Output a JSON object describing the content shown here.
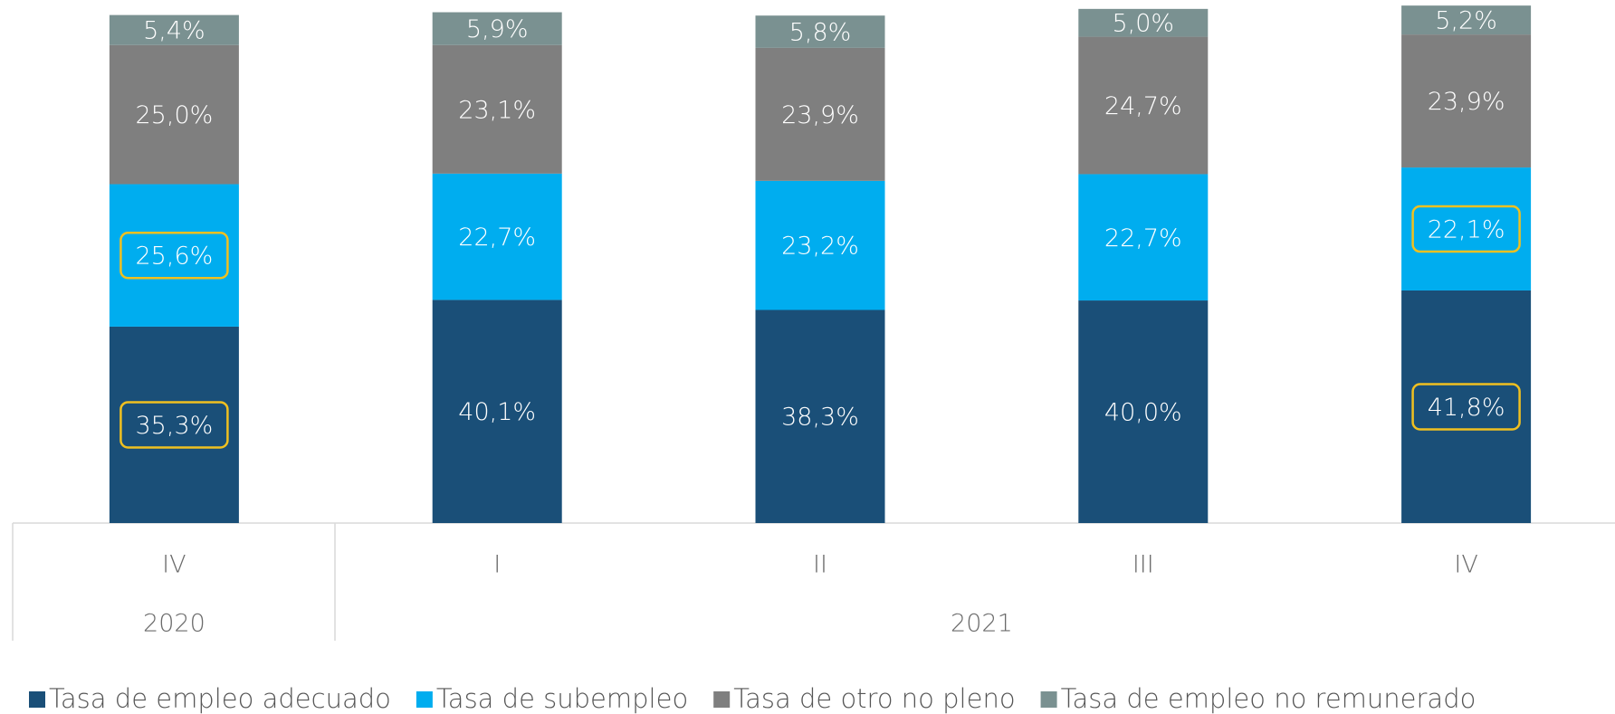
{
  "chart_data": {
    "type": "stacked_bar",
    "categories": [
      "IV",
      "I",
      "II",
      "III",
      "IV"
    ],
    "groups": [
      {
        "label": "2020",
        "size": 1
      },
      {
        "label": "2021",
        "size": 4
      }
    ],
    "ylim": [
      0,
      94
    ],
    "series": [
      {
        "name": "Tasa de empleo adecuado",
        "color": "#1a4f78",
        "values": [
          35.3,
          40.1,
          38.3,
          40.0,
          41.8
        ],
        "value_labels": [
          "35,3%",
          "40,1%",
          "38,3%",
          "40,0%",
          "41,8%"
        ],
        "highlight": [
          0,
          4
        ]
      },
      {
        "name": "Tasa de subempleo",
        "color": "#00adef",
        "values": [
          25.6,
          22.7,
          23.2,
          22.7,
          22.1
        ],
        "value_labels": [
          "25,6%",
          "22,7%",
          "23,2%",
          "22,7%",
          "22,1%"
        ],
        "highlight": [
          0,
          4
        ]
      },
      {
        "name": "Tasa de otro no pleno",
        "color": "#7f7f7f",
        "values": [
          25.0,
          23.1,
          23.9,
          24.7,
          23.9
        ],
        "value_labels": [
          "25,0%",
          "23,1%",
          "23,9%",
          "24,7%",
          "23,9%"
        ]
      },
      {
        "name": "Tasa de empleo no remunerado",
        "color": "#7a9191",
        "values": [
          5.4,
          5.9,
          5.8,
          5.0,
          5.2
        ],
        "value_labels": [
          "5,4%",
          "5,9%",
          "5,8%",
          "5,0%",
          "5,2%"
        ]
      }
    ],
    "legend": "bottom"
  }
}
